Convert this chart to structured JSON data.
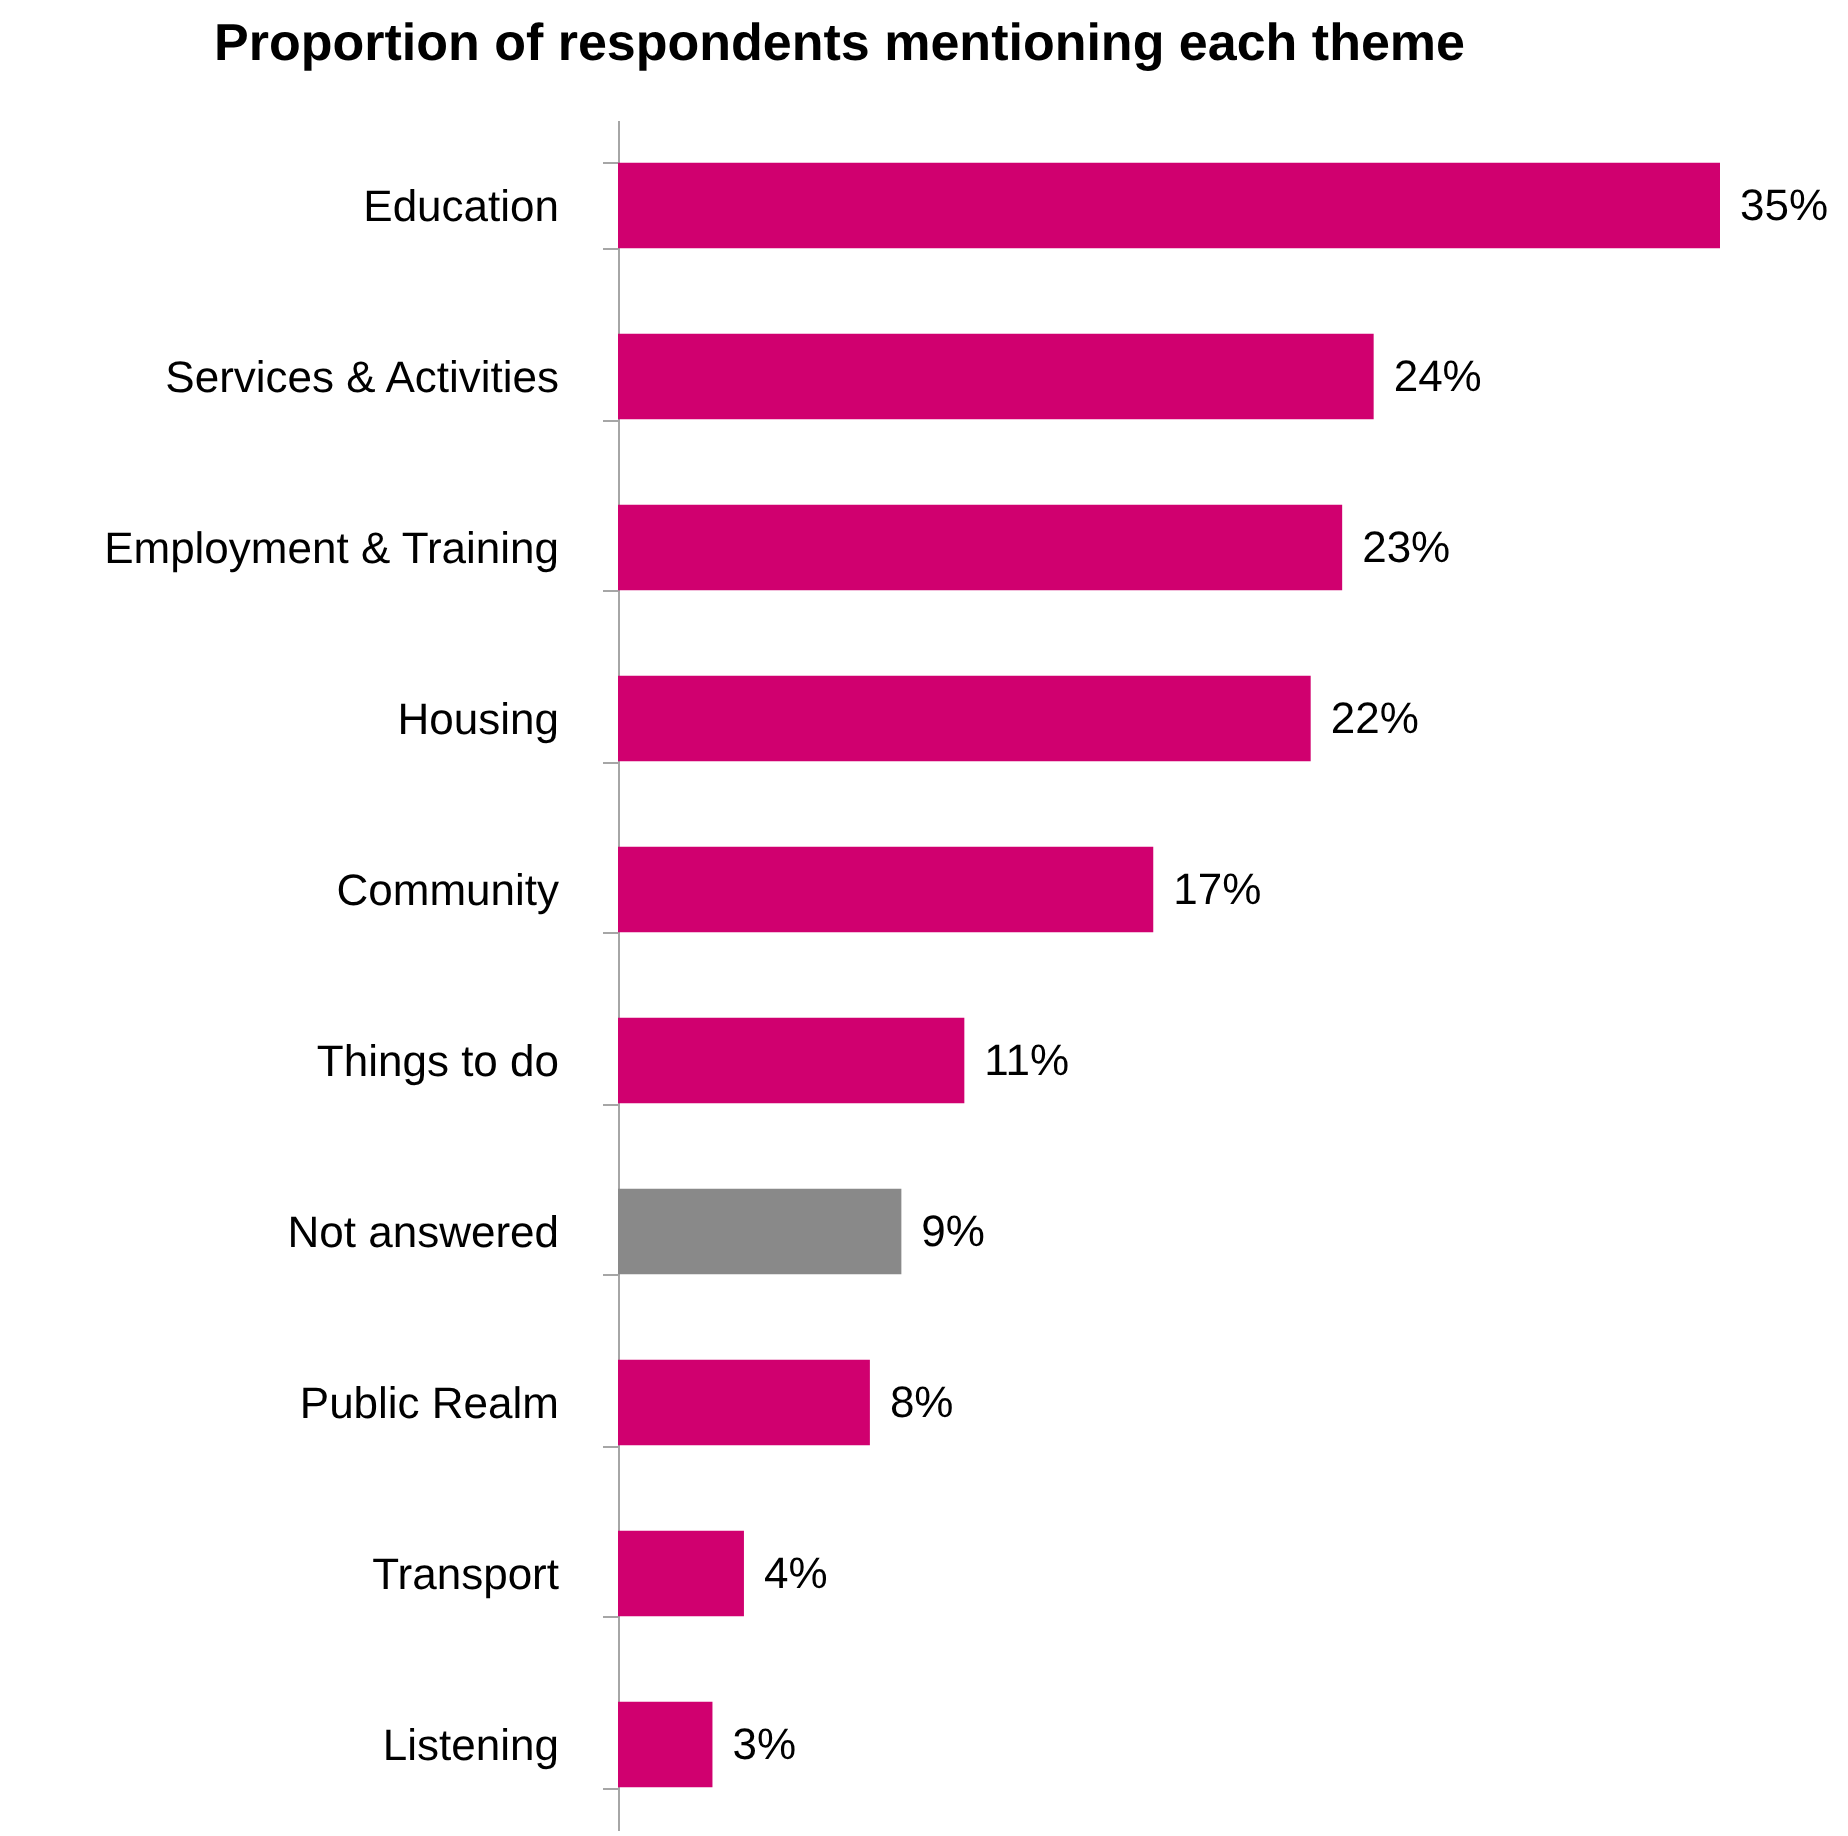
{
  "chart_data": {
    "type": "bar",
    "orientation": "horizontal",
    "title": "Proportion of respondents mentioning each theme",
    "categories": [
      "Education",
      "Services & Activities",
      "Employment & Training",
      "Housing",
      "Community",
      "Things to do",
      "Not answered",
      "Public Realm",
      "Transport",
      "Listening"
    ],
    "values": [
      35,
      24,
      23,
      22,
      17,
      11,
      9,
      8,
      4,
      3
    ],
    "value_labels": [
      "35%",
      "24%",
      "23%",
      "22%",
      "17%",
      "11%",
      "9%",
      "8%",
      "4%",
      "3%"
    ],
    "colors": [
      "#d0006f",
      "#d0006f",
      "#d0006f",
      "#d0006f",
      "#d0006f",
      "#d0006f",
      "#898989",
      "#d0006f",
      "#d0006f",
      "#d0006f"
    ],
    "grid": false
  }
}
